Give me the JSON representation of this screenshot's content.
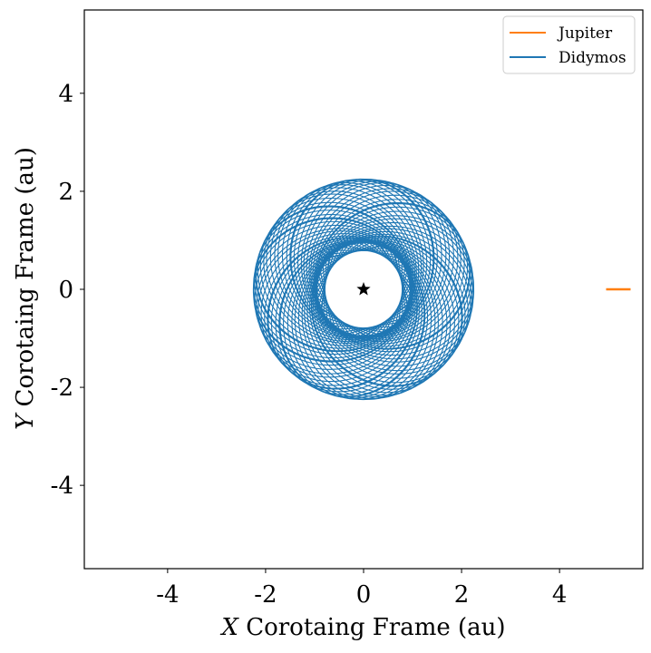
{
  "chart_data": {
    "type": "line",
    "xlabel": {
      "symbol": "X",
      "text": " Corotaing Frame (au)"
    },
    "ylabel": {
      "symbol": "Y",
      "text": " Corotaing Frame (au)"
    },
    "xlim": [
      -5.7,
      5.7
    ],
    "ylim": [
      -5.7,
      5.7
    ],
    "xticks": [
      -4,
      -2,
      0,
      2,
      4
    ],
    "yticks": [
      -4,
      -2,
      0,
      2,
      4
    ],
    "xtick_labels": [
      "-4",
      "-2",
      "0",
      "2",
      "4"
    ],
    "ytick_labels": [
      "-4",
      "-2",
      "0",
      "2",
      "4"
    ],
    "grid": false,
    "legend_position": "top-right",
    "series": [
      {
        "name": "Jupiter",
        "color": "#ff7f0e",
        "x": [
          4.95,
          5.45
        ],
        "y": [
          0.0,
          0.0
        ]
      },
      {
        "name": "Didymos",
        "color": "#1f77b4",
        "pattern": "rosette",
        "inner_radius": 0.95,
        "outer_radius": 2.25,
        "loops": 60
      }
    ],
    "markers": [
      {
        "name": "Sun",
        "symbol": "star",
        "x": 0,
        "y": 0,
        "color": "#000000"
      }
    ]
  }
}
